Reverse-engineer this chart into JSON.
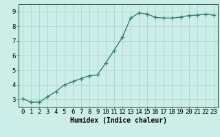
{
  "x": [
    0,
    1,
    2,
    3,
    4,
    5,
    6,
    7,
    8,
    9,
    10,
    11,
    12,
    13,
    14,
    15,
    16,
    17,
    18,
    19,
    20,
    21,
    22,
    23
  ],
  "y": [
    3.05,
    2.82,
    2.82,
    3.2,
    3.55,
    4.0,
    4.22,
    4.42,
    4.62,
    4.68,
    5.5,
    6.35,
    7.25,
    8.55,
    8.9,
    8.82,
    8.6,
    8.55,
    8.55,
    8.62,
    8.72,
    8.75,
    8.82,
    8.75
  ],
  "line_color": "#2e7d6e",
  "marker": "+",
  "markersize": 4,
  "linewidth": 1.0,
  "bg_color": "#cceee8",
  "grid_color": "#b0d4ce",
  "xlabel": "Humidex (Indice chaleur)",
  "xlabel_fontsize": 7,
  "ylabel_ticks": [
    3,
    4,
    5,
    6,
    7,
    8,
    9
  ],
  "xlim": [
    -0.5,
    23.5
  ],
  "ylim": [
    2.5,
    9.5
  ],
  "tick_fontsize": 6.5,
  "title": ""
}
